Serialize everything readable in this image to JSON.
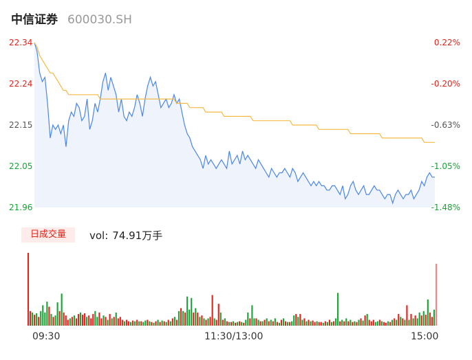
{
  "header": {
    "name": "中信证券",
    "code": "600030.SH"
  },
  "colors": {
    "up": "#e2231a",
    "down": "#1aa337",
    "price": "#4a86e8",
    "avg": "#f5b942",
    "area": "#eef3fc",
    "flat": "#555555"
  },
  "vol_label": {
    "tag": "日成交量",
    "prefix": "vol:",
    "value": "74.91万手"
  },
  "chart_data": [
    {
      "type": "line",
      "title": "",
      "y_left_ticks": [
        "22.34",
        "22.24",
        "22.15",
        "22.05",
        "21.96"
      ],
      "y_right_ticks": [
        "0.22%",
        "-0.20%",
        "-0.63%",
        "-1.05%",
        "-1.48%"
      ],
      "ylim": [
        21.96,
        22.34
      ],
      "x_ticks": [
        "09:30",
        "11:30/13:00",
        "15:00"
      ],
      "series": [
        {
          "role": "price",
          "values": [
            22.34,
            22.32,
            22.27,
            22.25,
            22.26,
            22.2,
            22.12,
            22.15,
            22.14,
            22.15,
            22.13,
            22.15,
            22.1,
            22.16,
            22.18,
            22.17,
            22.2,
            22.19,
            22.16,
            22.17,
            22.21,
            22.14,
            22.16,
            22.2,
            22.18,
            22.21,
            22.25,
            22.27,
            22.23,
            22.26,
            22.24,
            22.22,
            22.18,
            22.21,
            22.17,
            22.16,
            22.18,
            22.17,
            22.19,
            22.22,
            22.2,
            22.17,
            22.21,
            22.24,
            22.26,
            22.24,
            22.25,
            22.22,
            22.19,
            22.2,
            22.21,
            22.19,
            22.2,
            22.22,
            22.2,
            22.21,
            22.18,
            22.15,
            22.13,
            22.12,
            22.1,
            22.09,
            22.08,
            22.07,
            22.05,
            22.08,
            22.06,
            22.07,
            22.06,
            22.05,
            22.06,
            22.07,
            22.06,
            22.05,
            22.09,
            22.06,
            22.07,
            22.08,
            22.06,
            22.09,
            22.07,
            22.08,
            22.07,
            22.06,
            22.05,
            22.07,
            22.06,
            22.05,
            22.04,
            22.03,
            22.05,
            22.04,
            22.03,
            22.04,
            22.04,
            22.05,
            22.04,
            22.03,
            22.05,
            22.04,
            22.02,
            22.03,
            22.04,
            22.03,
            22.02,
            22.01,
            22.02,
            22.01,
            22.02,
            22.01,
            22.01,
            22.0,
            22.0,
            22.01,
            22.01,
            22.0,
            21.99,
            22.01,
            21.98,
            21.99,
            22.01,
            22.02,
            22.0,
            21.99,
            22.0,
            22.01,
            21.99,
            21.99,
            22.0,
            22.01,
            22.0,
            22.0,
            21.99,
            21.98,
            21.99,
            21.99,
            21.97,
            21.99,
            22.0,
            21.99,
            21.98,
            21.99,
            21.99,
            22.0,
            21.98,
            21.99,
            22.0,
            22.02,
            22.01,
            22.03,
            22.04,
            22.03,
            22.03
          ]
        },
        {
          "role": "average",
          "values": [
            22.34,
            22.33,
            22.31,
            22.3,
            22.29,
            22.28,
            22.27,
            22.27,
            22.26,
            22.25,
            22.24,
            22.23,
            22.23,
            22.22,
            22.22,
            22.22,
            22.22,
            22.22,
            22.22,
            22.22,
            22.22,
            22.22,
            22.22,
            22.22,
            22.22,
            22.21,
            22.21,
            22.21,
            22.21,
            22.21,
            22.21,
            22.21,
            22.21,
            22.21,
            22.21,
            22.21,
            22.21,
            22.21,
            22.21,
            22.21,
            22.21,
            22.21,
            22.21,
            22.21,
            22.21,
            22.21,
            22.21,
            22.21,
            22.21,
            22.21,
            22.21,
            22.21,
            22.21,
            22.21,
            22.2,
            22.2,
            22.2,
            22.2,
            22.2,
            22.19,
            22.19,
            22.19,
            22.19,
            22.19,
            22.19,
            22.18,
            22.18,
            22.18,
            22.18,
            22.18,
            22.18,
            22.18,
            22.17,
            22.17,
            22.17,
            22.17,
            22.17,
            22.17,
            22.17,
            22.17,
            22.17,
            22.17,
            22.17,
            22.16,
            22.16,
            22.16,
            22.16,
            22.16,
            22.16,
            22.16,
            22.16,
            22.16,
            22.16,
            22.16,
            22.16,
            22.16,
            22.16,
            22.16,
            22.15,
            22.15,
            22.15,
            22.15,
            22.15,
            22.15,
            22.15,
            22.15,
            22.15,
            22.15,
            22.14,
            22.14,
            22.14,
            22.14,
            22.14,
            22.14,
            22.14,
            22.14,
            22.14,
            22.14,
            22.14,
            22.14,
            22.13,
            22.13,
            22.13,
            22.13,
            22.13,
            22.13,
            22.13,
            22.13,
            22.13,
            22.13,
            22.13,
            22.13,
            22.12,
            22.12,
            22.12,
            22.12,
            22.12,
            22.12,
            22.12,
            22.12,
            22.12,
            22.12,
            22.12,
            22.12,
            22.12,
            22.12,
            22.12,
            22.12,
            22.11,
            22.11,
            22.11,
            22.11,
            22.11
          ]
        }
      ]
    },
    {
      "type": "bar",
      "title": "",
      "unit": "relative",
      "values": [
        1.0,
        0.2,
        0.18,
        0.15,
        0.17,
        0.12,
        0.2,
        0.28,
        0.18,
        0.33,
        0.26,
        0.16,
        0.12,
        0.14,
        0.32,
        0.2,
        0.44,
        0.18,
        0.14,
        0.08,
        0.1,
        0.12,
        0.14,
        0.1,
        0.16,
        0.18,
        0.15,
        0.17,
        0.12,
        0.14,
        0.1,
        0.16,
        0.2,
        0.12,
        0.18,
        0.1,
        0.14,
        0.12,
        0.08,
        0.16,
        0.1,
        0.12,
        0.18,
        0.1,
        0.12,
        0.08,
        0.06,
        0.08,
        0.06,
        0.05,
        0.07,
        0.06,
        0.08,
        0.06,
        0.06,
        0.05,
        0.07,
        0.08,
        0.06,
        0.05,
        0.04,
        0.06,
        0.08,
        0.05,
        0.07,
        0.06,
        0.05,
        0.08,
        0.06,
        0.1,
        0.12,
        0.08,
        0.2,
        0.24,
        0.2,
        0.18,
        0.4,
        0.22,
        0.38,
        0.18,
        0.24,
        0.18,
        0.12,
        0.14,
        0.1,
        0.08,
        0.1,
        0.12,
        0.42,
        0.1,
        0.08,
        0.3,
        0.18,
        0.08,
        0.1,
        0.06,
        0.05,
        0.05,
        0.06,
        0.04,
        0.05,
        0.06,
        0.05,
        0.04,
        0.08,
        0.18,
        0.1,
        0.28,
        0.1,
        0.1,
        0.08,
        0.06,
        0.06,
        0.08,
        0.1,
        0.06,
        0.08,
        0.06,
        0.1,
        0.05,
        0.04,
        0.08,
        0.1,
        0.06,
        0.05,
        0.05,
        0.06,
        0.14,
        0.16,
        0.12,
        0.16,
        0.08,
        0.1,
        0.06,
        0.08,
        0.06,
        0.07,
        0.05,
        0.06,
        0.05,
        0.05,
        0.04,
        0.06,
        0.05,
        0.08,
        0.05,
        0.06,
        0.1,
        0.45,
        0.06,
        0.08,
        0.06,
        0.1,
        0.06,
        0.08,
        0.05,
        0.06,
        0.05,
        0.08,
        0.1,
        0.07,
        0.14,
        0.16,
        0.08,
        0.06,
        0.08,
        0.05,
        0.06,
        0.08,
        0.06,
        0.05,
        0.04,
        0.06,
        0.05,
        0.08,
        0.1,
        0.08,
        0.16,
        0.12,
        0.1,
        0.08,
        0.28,
        0.08,
        0.16,
        0.1,
        0.14,
        0.1,
        0.18,
        0.14,
        0.2,
        0.15,
        0.36,
        0.18,
        0.12,
        0.22,
        0.85
      ],
      "colors": [
        "up",
        "up",
        "down",
        "up",
        "down",
        "up",
        "down",
        "down",
        "down",
        "down",
        "up",
        "down",
        "up",
        "down",
        "down",
        "up",
        "down",
        "up",
        "up",
        "up",
        "down",
        "up",
        "down",
        "up",
        "up",
        "down",
        "up",
        "up",
        "down",
        "up",
        "up",
        "up",
        "down",
        "down",
        "up",
        "up",
        "down",
        "up",
        "down",
        "up",
        "down",
        "up",
        "down",
        "up",
        "up",
        "up",
        "down",
        "up",
        "up",
        "down",
        "up",
        "down",
        "up",
        "down",
        "up",
        "down",
        "down",
        "up",
        "down",
        "up",
        "down",
        "up",
        "down",
        "up",
        "down",
        "up",
        "down",
        "up",
        "down",
        "up",
        "down",
        "up",
        "down",
        "up",
        "down",
        "up",
        "down",
        "down",
        "down",
        "up",
        "down",
        "up",
        "down",
        "up",
        "down",
        "up",
        "down",
        "up",
        "up",
        "down",
        "up",
        "up",
        "down",
        "up",
        "down",
        "up",
        "down",
        "up",
        "down",
        "up",
        "down",
        "up",
        "down",
        "up",
        "down",
        "down",
        "up",
        "down",
        "down",
        "up",
        "down",
        "up",
        "down",
        "up",
        "down",
        "up",
        "down",
        "up",
        "down",
        "up",
        "down",
        "up",
        "down",
        "up",
        "down",
        "up",
        "down",
        "down",
        "up",
        "down",
        "up",
        "down",
        "up",
        "down",
        "up",
        "down",
        "up",
        "up",
        "down",
        "up",
        "up",
        "down",
        "up",
        "down",
        "up",
        "down",
        "up",
        "down",
        "down",
        "up",
        "down",
        "up",
        "down",
        "up",
        "down",
        "up",
        "down",
        "up",
        "down",
        "up",
        "down",
        "up",
        "down",
        "up",
        "up",
        "up",
        "down",
        "down",
        "up",
        "down",
        "up",
        "up",
        "down",
        "up",
        "down",
        "up",
        "down",
        "up",
        "down",
        "up",
        "down",
        "up",
        "down",
        "up",
        "down",
        "up",
        "down",
        "down",
        "up",
        "down",
        "up",
        "down",
        "up",
        "up",
        "down",
        "up",
        "up"
      ]
    }
  ]
}
